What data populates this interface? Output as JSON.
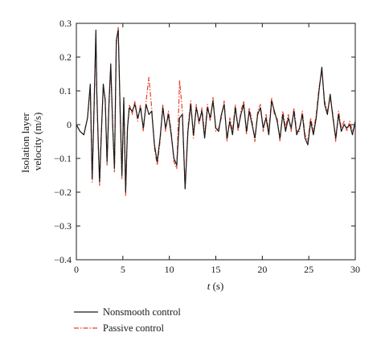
{
  "chart_data": {
    "type": "line",
    "title": "",
    "ylabel_line1": "Isolation layer",
    "ylabel_line2": "velocity (m/s)",
    "xlabel_var": "t",
    "xlabel_unit": " (s)",
    "xlim": [
      0,
      30
    ],
    "ylim": [
      -0.4,
      0.3
    ],
    "grid": false,
    "legend_position": "bottom-left, below plot",
    "x_ticks": [
      0,
      5,
      10,
      15,
      20,
      25,
      30
    ],
    "x_tick_labels": [
      "0",
      "5",
      "10",
      "15",
      "20",
      "25",
      "30"
    ],
    "y_ticks": [
      0.3,
      0.2,
      0.1,
      0,
      -0.1,
      -0.2,
      -0.3,
      -0.4
    ],
    "y_tick_labels": [
      "0.3",
      "0.2",
      "0.1",
      "0",
      "−0.1",
      "−0.2",
      "−0.3",
      "−0.4"
    ],
    "series": [
      {
        "name": "Nonsmooth control",
        "color": "#1a1a1a",
        "style": "solid",
        "x": [
          0,
          0.4,
          0.8,
          1.2,
          1.5,
          1.7,
          1.9,
          2.1,
          2.2,
          2.35,
          2.5,
          2.7,
          2.9,
          3.1,
          3.3,
          3.5,
          3.7,
          3.9,
          4.1,
          4.3,
          4.5,
          4.7,
          4.9,
          5.1,
          5.3,
          5.5,
          5.7,
          6.0,
          6.3,
          6.6,
          6.9,
          7.2,
          7.5,
          7.8,
          8.1,
          8.4,
          8.7,
          9.0,
          9.3,
          9.6,
          9.9,
          10.2,
          10.5,
          10.8,
          11.1,
          11.4,
          11.7,
          12.0,
          12.3,
          12.6,
          12.9,
          13.2,
          13.5,
          13.8,
          14.1,
          14.4,
          14.7,
          15.0,
          15.3,
          15.6,
          15.9,
          16.2,
          16.5,
          16.8,
          17.1,
          17.4,
          17.7,
          18.0,
          18.3,
          18.6,
          18.9,
          19.2,
          19.5,
          19.8,
          20.1,
          20.4,
          20.7,
          21.0,
          21.3,
          21.6,
          21.9,
          22.2,
          22.5,
          22.8,
          23.1,
          23.4,
          23.7,
          24.0,
          24.3,
          24.6,
          24.9,
          25.2,
          25.5,
          25.8,
          26.1,
          26.4,
          26.7,
          27.0,
          27.3,
          27.6,
          27.9,
          28.2,
          28.5,
          28.8,
          29.1,
          29.4,
          29.7,
          30.0
        ],
        "y": [
          0,
          -0.02,
          -0.03,
          0.02,
          0.12,
          -0.16,
          0.05,
          0.28,
          0.1,
          -0.05,
          -0.17,
          -0.02,
          0.12,
          0.07,
          -0.11,
          0.06,
          0.18,
          0.0,
          -0.13,
          0.25,
          0.28,
          0.05,
          -0.15,
          0.08,
          -0.2,
          -0.01,
          0.05,
          0.04,
          0.06,
          0.02,
          0.05,
          -0.01,
          0.06,
          0.03,
          0.04,
          -0.06,
          -0.11,
          -0.04,
          0.05,
          -0.01,
          0.03,
          -0.03,
          -0.1,
          -0.12,
          0.02,
          0.03,
          -0.19,
          -0.02,
          0.06,
          -0.03,
          0.05,
          0.01,
          0.04,
          -0.04,
          0.05,
          0.02,
          0.07,
          -0.01,
          -0.02,
          0.03,
          0.06,
          -0.04,
          0.01,
          -0.03,
          0.05,
          -0.01,
          0.03,
          0.06,
          -0.02,
          0.04,
          0.0,
          -0.04,
          0.03,
          0.05,
          -0.01,
          0.02,
          -0.03,
          0.07,
          0.04,
          0.01,
          -0.04,
          0.03,
          -0.02,
          0.02,
          -0.01,
          0.04,
          -0.03,
          -0.01,
          0.03,
          -0.04,
          -0.06,
          0.01,
          -0.03,
          0.02,
          0.1,
          0.17,
          0.06,
          0.03,
          0.09,
          0.02,
          -0.04,
          0.03,
          -0.02,
          0.0,
          -0.01,
          0.0,
          -0.03,
          0.01
        ]
      },
      {
        "name": "Passive control",
        "color": "#e8402a",
        "style": "dash-dot",
        "x": [
          0,
          0.4,
          0.8,
          1.2,
          1.5,
          1.7,
          1.9,
          2.1,
          2.2,
          2.35,
          2.5,
          2.7,
          2.9,
          3.1,
          3.3,
          3.5,
          3.7,
          3.9,
          4.1,
          4.3,
          4.5,
          4.7,
          4.9,
          5.1,
          5.3,
          5.5,
          5.7,
          6.0,
          6.3,
          6.6,
          6.9,
          7.2,
          7.5,
          7.8,
          8.1,
          8.4,
          8.7,
          9.0,
          9.3,
          9.6,
          9.9,
          10.2,
          10.5,
          10.8,
          11.1,
          11.4,
          11.7,
          12.0,
          12.3,
          12.6,
          12.9,
          13.2,
          13.5,
          13.8,
          14.1,
          14.4,
          14.7,
          15.0,
          15.3,
          15.6,
          15.9,
          16.2,
          16.5,
          16.8,
          17.1,
          17.4,
          17.7,
          18.0,
          18.3,
          18.6,
          18.9,
          19.2,
          19.5,
          19.8,
          20.1,
          20.4,
          20.7,
          21.0,
          21.3,
          21.6,
          21.9,
          22.2,
          22.5,
          22.8,
          23.1,
          23.4,
          23.7,
          24.0,
          24.3,
          24.6,
          24.9,
          25.2,
          25.5,
          25.8,
          26.1,
          26.4,
          26.7,
          27.0,
          27.3,
          27.6,
          27.9,
          28.2,
          28.5,
          28.8,
          29.1,
          29.4,
          29.7,
          30.0
        ],
        "y": [
          0,
          -0.02,
          -0.03,
          0.02,
          0.11,
          -0.17,
          0.04,
          0.27,
          0.09,
          -0.06,
          -0.18,
          -0.01,
          0.11,
          0.08,
          -0.12,
          0.05,
          0.17,
          0.01,
          -0.14,
          0.24,
          0.29,
          0.04,
          -0.16,
          0.07,
          -0.21,
          -0.01,
          0.06,
          0.03,
          0.07,
          0.01,
          0.06,
          -0.02,
          0.07,
          0.14,
          0.05,
          -0.07,
          -0.12,
          -0.05,
          0.06,
          -0.02,
          0.04,
          -0.02,
          -0.11,
          -0.13,
          0.13,
          0.04,
          -0.19,
          -0.01,
          0.07,
          -0.04,
          0.06,
          0.0,
          0.05,
          -0.03,
          0.06,
          0.01,
          0.08,
          -0.02,
          -0.01,
          0.02,
          0.07,
          -0.05,
          0.02,
          -0.02,
          0.06,
          -0.02,
          0.04,
          0.07,
          -0.03,
          0.05,
          0.01,
          -0.05,
          0.04,
          0.06,
          -0.02,
          0.03,
          -0.02,
          0.08,
          0.03,
          0.02,
          -0.05,
          0.04,
          -0.01,
          0.03,
          -0.02,
          0.05,
          -0.02,
          -0.02,
          0.04,
          -0.03,
          -0.05,
          0.02,
          -0.02,
          0.03,
          0.11,
          0.16,
          0.07,
          0.04,
          0.08,
          0.03,
          -0.05,
          0.04,
          -0.01,
          0.01,
          -0.02,
          0.01,
          -0.02,
          0.0
        ]
      }
    ]
  }
}
